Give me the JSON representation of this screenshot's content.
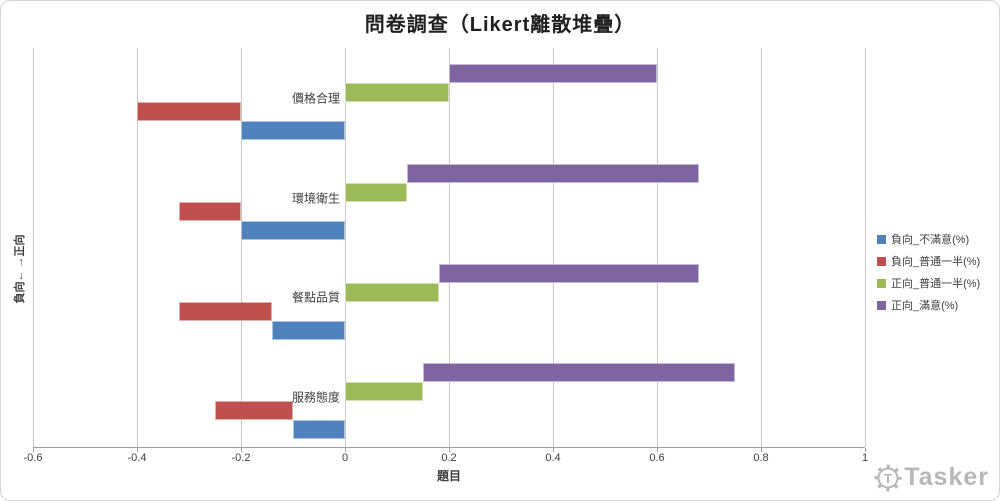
{
  "title": "問卷調查（Likert離散堆疊）",
  "axes": {
    "x_title": "題目",
    "y_title": "負向← →正向",
    "x_tick_labels": [
      "-0.6",
      "-0.4",
      "-0.2",
      "0",
      "0.2",
      "0.4",
      "0.6",
      "0.8",
      "1"
    ],
    "x_ticks": [
      -0.6,
      -0.4,
      -0.2,
      0,
      0.2,
      0.4,
      0.6,
      0.8,
      1
    ]
  },
  "legend": {
    "position": "right",
    "items": [
      {
        "label": "負向_不滿意(%)",
        "color": "#4F81BD"
      },
      {
        "label": "負向_普通一半(%)",
        "color": "#C0504D"
      },
      {
        "label": "正向_普通一半(%)",
        "color": "#9BBB59"
      },
      {
        "label": "正向_滿意(%)",
        "color": "#8064A2"
      }
    ]
  },
  "chart_data": {
    "type": "bar",
    "variant": "diverging-stacked-likert",
    "orientation": "horizontal",
    "grid": true,
    "legend_position": "right",
    "title": "問卷調查（Likert離散堆疊）",
    "xlabel": "題目",
    "ylabel": "負向← →正向",
    "xlim": [
      -0.6,
      1
    ],
    "categories": [
      "價格合理",
      "環境衛生",
      "餐點品質",
      "服務態度"
    ],
    "series": [
      {
        "name": "負向_不滿意(%)",
        "color": "#4F81BD",
        "side": "negative",
        "values": [
          0.2,
          0.2,
          0.14,
          0.1
        ]
      },
      {
        "name": "負向_普通一半(%)",
        "color": "#C0504D",
        "side": "negative",
        "values": [
          0.2,
          0.12,
          0.18,
          0.15
        ]
      },
      {
        "name": "正向_普通一半(%)",
        "color": "#9BBB59",
        "side": "positive",
        "values": [
          0.2,
          0.12,
          0.18,
          0.15
        ]
      },
      {
        "name": "正向_滿意(%)",
        "color": "#8064A2",
        "side": "positive",
        "values": [
          0.4,
          0.56,
          0.5,
          0.6
        ]
      }
    ],
    "bar_extents": {
      "價格合理": {
        "負向_不滿意": [
          -0.2,
          0
        ],
        "負向_普通一半": [
          -0.4,
          -0.2
        ],
        "正向_普通一半": [
          0,
          0.2
        ],
        "正向_滿意": [
          0.2,
          0.6
        ]
      },
      "環境衛生": {
        "負向_不滿意": [
          -0.2,
          0
        ],
        "負向_普通一半": [
          -0.32,
          -0.2
        ],
        "正向_普通一半": [
          0,
          0.12
        ],
        "正向_滿意": [
          0.12,
          0.68
        ]
      },
      "餐點品質": {
        "負向_不滿意": [
          -0.14,
          0
        ],
        "負向_普通一半": [
          -0.32,
          -0.14
        ],
        "正向_普通一半": [
          0,
          0.18
        ],
        "正向_滿意": [
          0.18,
          0.68
        ]
      },
      "服務態度": {
        "負向_不滿意": [
          -0.1,
          0
        ],
        "負向_普通一半": [
          -0.25,
          -0.1
        ],
        "正向_普通一半": [
          0,
          0.15
        ],
        "正向_滿意": [
          0.15,
          0.75
        ]
      }
    }
  },
  "watermark": {
    "logo_letter": "T",
    "text": "Tasker"
  }
}
